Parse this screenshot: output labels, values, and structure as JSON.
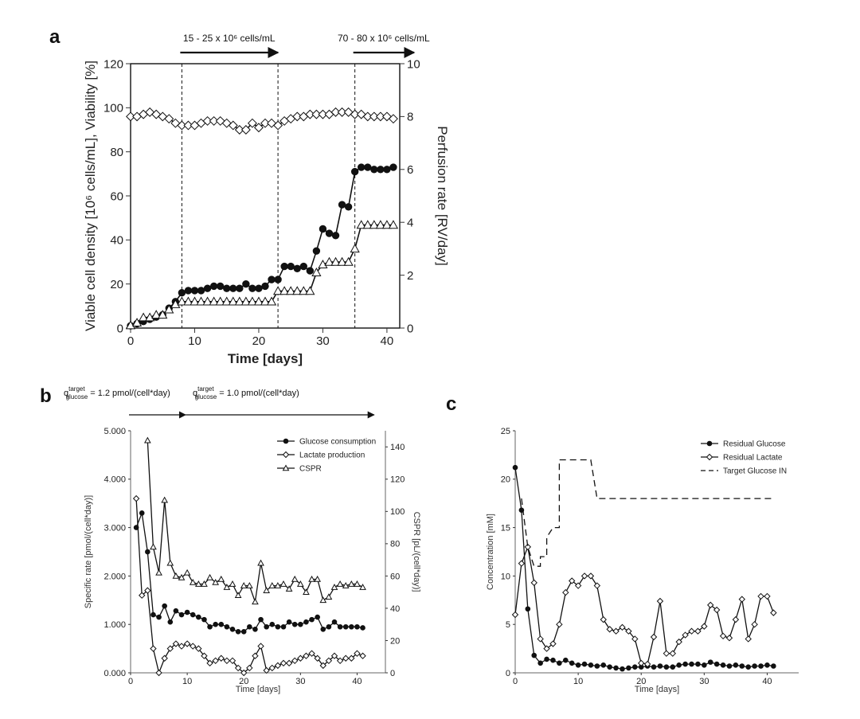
{
  "figure": {
    "panel_labels": [
      "a",
      "b",
      "c"
    ],
    "annotations_a": [
      {
        "text": "15 - 25 x 10⁶ cells/mL",
        "from_x": 8,
        "to_x": 23
      },
      {
        "text": "70 - 80 x 10⁶ cells/mL",
        "from_x": 35,
        "to_x": 42
      }
    ],
    "annotations_b": [
      {
        "prefix": "q",
        "sup": "target",
        "sub": "glucose",
        "text": " = 1.2 pmol/(cell*day)",
        "from_x": 0,
        "to_x": 9
      },
      {
        "prefix": "q",
        "sup": "target",
        "sub": "glucose",
        "text": " = 1.0 pmol/(cell*day)",
        "from_x": 10,
        "to_x": 43
      }
    ]
  },
  "chart_data": [
    {
      "panel": "a",
      "type": "line",
      "xlabel": "Time [days]",
      "ylabel": "Viable cell density [10⁶ cells/mL], Viability [%]",
      "y2label": "Perfusion rate [RV/day]",
      "xlim": [
        0,
        42
      ],
      "ylim": [
        0,
        120
      ],
      "y2lim": [
        0,
        10
      ],
      "xticks": [
        0,
        10,
        20,
        30,
        40
      ],
      "yticks": [
        0,
        20,
        40,
        60,
        80,
        100,
        120
      ],
      "y2ticks": [
        0,
        2,
        4,
        6,
        8,
        10
      ],
      "vlines": [
        8,
        23,
        35
      ],
      "series": [
        {
          "name": "Viability",
          "axis": "left",
          "marker": "open-diamond",
          "x": [
            0,
            1,
            2,
            3,
            4,
            5,
            6,
            7,
            8,
            9,
            10,
            11,
            12,
            13,
            14,
            15,
            16,
            17,
            18,
            19,
            20,
            21,
            22,
            23,
            24,
            25,
            26,
            27,
            28,
            29,
            30,
            31,
            32,
            33,
            34,
            35,
            36,
            37,
            38,
            39,
            40,
            41
          ],
          "values": [
            96,
            96,
            97,
            98,
            97,
            96,
            95,
            93,
            92,
            92,
            92,
            93,
            94,
            94,
            94,
            93,
            92,
            90,
            90,
            93,
            91,
            93,
            93,
            92,
            94,
            95,
            96,
            96,
            97,
            97,
            97,
            97,
            98,
            98,
            98,
            97,
            97,
            96,
            96,
            96,
            96,
            95
          ]
        },
        {
          "name": "Viable cell density",
          "axis": "left",
          "marker": "filled-circle",
          "x": [
            0,
            1,
            2,
            3,
            4,
            5,
            6,
            7,
            8,
            9,
            10,
            11,
            12,
            13,
            14,
            15,
            16,
            17,
            18,
            19,
            20,
            21,
            22,
            23,
            24,
            25,
            26,
            27,
            28,
            29,
            30,
            31,
            32,
            33,
            34,
            35,
            36,
            37,
            38,
            39,
            40,
            41
          ],
          "values": [
            1,
            2,
            3,
            4,
            5,
            6,
            9,
            12,
            16,
            17,
            17,
            17,
            18,
            19,
            19,
            18,
            18,
            18,
            20,
            18,
            18,
            19,
            22,
            22,
            28,
            28,
            27,
            28,
            26,
            35,
            45,
            43,
            42,
            56,
            55,
            71,
            73,
            73,
            72,
            72,
            72,
            73
          ]
        },
        {
          "name": "Perfusion rate",
          "axis": "right",
          "marker": "open-triangle",
          "x": [
            0,
            1,
            2,
            3,
            4,
            5,
            6,
            7,
            8,
            9,
            10,
            11,
            12,
            13,
            14,
            15,
            16,
            17,
            18,
            19,
            20,
            21,
            22,
            23,
            24,
            25,
            26,
            27,
            28,
            29,
            30,
            31,
            32,
            33,
            34,
            35,
            36,
            37,
            38,
            39,
            40,
            41
          ],
          "values": [
            0.1,
            0.2,
            0.4,
            0.4,
            0.5,
            0.5,
            0.7,
            0.9,
            1.0,
            1.0,
            1.0,
            1.0,
            1.0,
            1.0,
            1.0,
            1.0,
            1.0,
            1.0,
            1.0,
            1.0,
            1.0,
            1.0,
            1.0,
            1.4,
            1.4,
            1.4,
            1.4,
            1.4,
            1.4,
            2.1,
            2.4,
            2.5,
            2.5,
            2.5,
            2.5,
            3.0,
            3.9,
            3.9,
            3.9,
            3.9,
            3.9,
            3.9
          ]
        }
      ]
    },
    {
      "panel": "b",
      "type": "line",
      "xlabel": "Time [days]",
      "ylabel": "Specific rate [pmol/(cell*day)]",
      "y2label": "CSPR [pL/(cell*day)]",
      "xlim": [
        0,
        45
      ],
      "ylim": [
        0,
        5
      ],
      "y2lim": [
        0,
        150
      ],
      "xticks": [
        0,
        10,
        20,
        30,
        40
      ],
      "yticks": [
        0,
        1,
        2,
        3,
        4,
        5
      ],
      "ytick_labels": [
        "0.000",
        "1.000",
        "2.000",
        "3.000",
        "4.000",
        "5.000"
      ],
      "y2ticks": [
        0,
        20,
        40,
        60,
        80,
        100,
        120,
        140
      ],
      "legend": [
        "Glucose consumption",
        "Lactate production",
        "CSPR"
      ],
      "series": [
        {
          "name": "Glucose consumption",
          "axis": "left",
          "marker": "filled-circle",
          "x": [
            1,
            2,
            3,
            4,
            5,
            6,
            7,
            8,
            9,
            10,
            11,
            12,
            13,
            14,
            15,
            16,
            17,
            18,
            19,
            20,
            21,
            22,
            23,
            24,
            25,
            26,
            27,
            28,
            29,
            30,
            31,
            32,
            33,
            34,
            35,
            36,
            37,
            38,
            39,
            40,
            41
          ],
          "values": [
            3.0,
            3.3,
            2.5,
            1.2,
            1.15,
            1.38,
            1.05,
            1.28,
            1.2,
            1.25,
            1.2,
            1.15,
            1.1,
            0.95,
            1.0,
            1.0,
            0.95,
            0.9,
            0.85,
            0.85,
            0.95,
            0.9,
            1.1,
            0.95,
            1.0,
            0.95,
            0.95,
            1.05,
            1.0,
            1.0,
            1.05,
            1.1,
            1.15,
            0.9,
            0.95,
            1.05,
            0.95,
            0.95,
            0.95,
            0.95,
            0.93
          ]
        },
        {
          "name": "Lactate production",
          "axis": "left",
          "marker": "open-diamond",
          "x": [
            1,
            2,
            3,
            4,
            5,
            6,
            7,
            8,
            9,
            10,
            11,
            12,
            13,
            14,
            15,
            16,
            17,
            18,
            19,
            20,
            21,
            22,
            23,
            24,
            25,
            26,
            27,
            28,
            29,
            30,
            31,
            32,
            33,
            34,
            35,
            36,
            37,
            38,
            39,
            40,
            41
          ],
          "values": [
            3.6,
            1.6,
            1.7,
            0.5,
            0.0,
            0.3,
            0.5,
            0.6,
            0.55,
            0.6,
            0.55,
            0.5,
            0.35,
            0.2,
            0.25,
            0.3,
            0.25,
            0.25,
            0.1,
            0.0,
            0.1,
            0.35,
            0.55,
            0.05,
            0.1,
            0.15,
            0.2,
            0.2,
            0.25,
            0.3,
            0.35,
            0.4,
            0.3,
            0.15,
            0.25,
            0.35,
            0.25,
            0.3,
            0.3,
            0.4,
            0.35
          ]
        },
        {
          "name": "CSPR",
          "axis": "right",
          "marker": "open-triangle",
          "x": [
            1,
            2,
            3,
            4,
            5,
            6,
            7,
            8,
            9,
            10,
            11,
            12,
            13,
            14,
            15,
            16,
            17,
            18,
            19,
            20,
            21,
            22,
            23,
            24,
            25,
            26,
            27,
            28,
            29,
            30,
            31,
            32,
            33,
            34,
            35,
            36,
            37,
            38,
            39,
            40,
            41
          ],
          "values": [
            null,
            null,
            144,
            78,
            62,
            107,
            68,
            60,
            59,
            62,
            56,
            55,
            55,
            59,
            56,
            58,
            53,
            55,
            48,
            54,
            54,
            44,
            68,
            51,
            54,
            54,
            55,
            52,
            58,
            55,
            50,
            58,
            58,
            45,
            47,
            53,
            55,
            54,
            55,
            55,
            53
          ]
        }
      ]
    },
    {
      "panel": "c",
      "type": "line",
      "xlabel": "Time [days]",
      "ylabel": "Concentration [mM]",
      "xlim": [
        0,
        45
      ],
      "ylim": [
        0,
        25
      ],
      "xticks": [
        0,
        10,
        20,
        30,
        40
      ],
      "yticks": [
        0,
        5,
        10,
        15,
        20,
        25
      ],
      "legend": [
        "Residual Glucose",
        "Residual Lactate",
        "Target Glucose IN"
      ],
      "series": [
        {
          "name": "Residual Glucose",
          "marker": "filled-circle",
          "x": [
            0,
            1,
            2,
            3,
            4,
            5,
            6,
            7,
            8,
            9,
            10,
            11,
            12,
            13,
            14,
            15,
            16,
            17,
            18,
            19,
            20,
            21,
            22,
            23,
            24,
            25,
            26,
            27,
            28,
            29,
            30,
            31,
            32,
            33,
            34,
            35,
            36,
            37,
            38,
            39,
            40,
            41
          ],
          "values": [
            21.2,
            16.8,
            6.6,
            1.8,
            1.0,
            1.4,
            1.3,
            1.0,
            1.3,
            1.0,
            0.8,
            0.9,
            0.8,
            0.7,
            0.8,
            0.6,
            0.5,
            0.4,
            0.5,
            0.6,
            0.6,
            0.7,
            0.6,
            0.7,
            0.6,
            0.6,
            0.8,
            0.9,
            0.9,
            0.9,
            0.8,
            1.1,
            0.9,
            0.8,
            0.7,
            0.8,
            0.7,
            0.6,
            0.7,
            0.7,
            0.8,
            0.7
          ]
        },
        {
          "name": "Residual Lactate",
          "marker": "open-diamond",
          "x": [
            0,
            1,
            2,
            3,
            4,
            5,
            6,
            7,
            8,
            9,
            10,
            11,
            12,
            13,
            14,
            15,
            16,
            17,
            18,
            19,
            20,
            21,
            22,
            23,
            24,
            25,
            26,
            27,
            28,
            29,
            30,
            31,
            32,
            33,
            34,
            35,
            36,
            37,
            38,
            39,
            40,
            41
          ],
          "values": [
            6.0,
            11.3,
            13.0,
            9.3,
            3.5,
            2.5,
            3.0,
            5.0,
            8.3,
            9.5,
            9.0,
            10.0,
            10.0,
            9.0,
            5.5,
            4.5,
            4.3,
            4.7,
            4.3,
            3.5,
            1.0,
            0.9,
            3.7,
            7.4,
            2.0,
            2.0,
            3.2,
            3.9,
            4.3,
            4.3,
            4.8,
            7.0,
            6.5,
            3.8,
            3.6,
            5.5,
            7.6,
            3.5,
            5.0,
            7.9,
            7.9,
            6.2
          ]
        },
        {
          "name": "Target Glucose IN",
          "marker": "none",
          "dashed": true,
          "x": [
            1,
            2,
            3,
            4,
            4,
            5,
            5,
            6,
            7,
            7,
            8,
            9,
            10,
            12,
            13,
            14,
            20,
            30,
            41
          ],
          "values": [
            18,
            13,
            11,
            11,
            12,
            12,
            14,
            15,
            15,
            22,
            22,
            22,
            22,
            22,
            18,
            18,
            18,
            18,
            18
          ]
        }
      ]
    }
  ]
}
